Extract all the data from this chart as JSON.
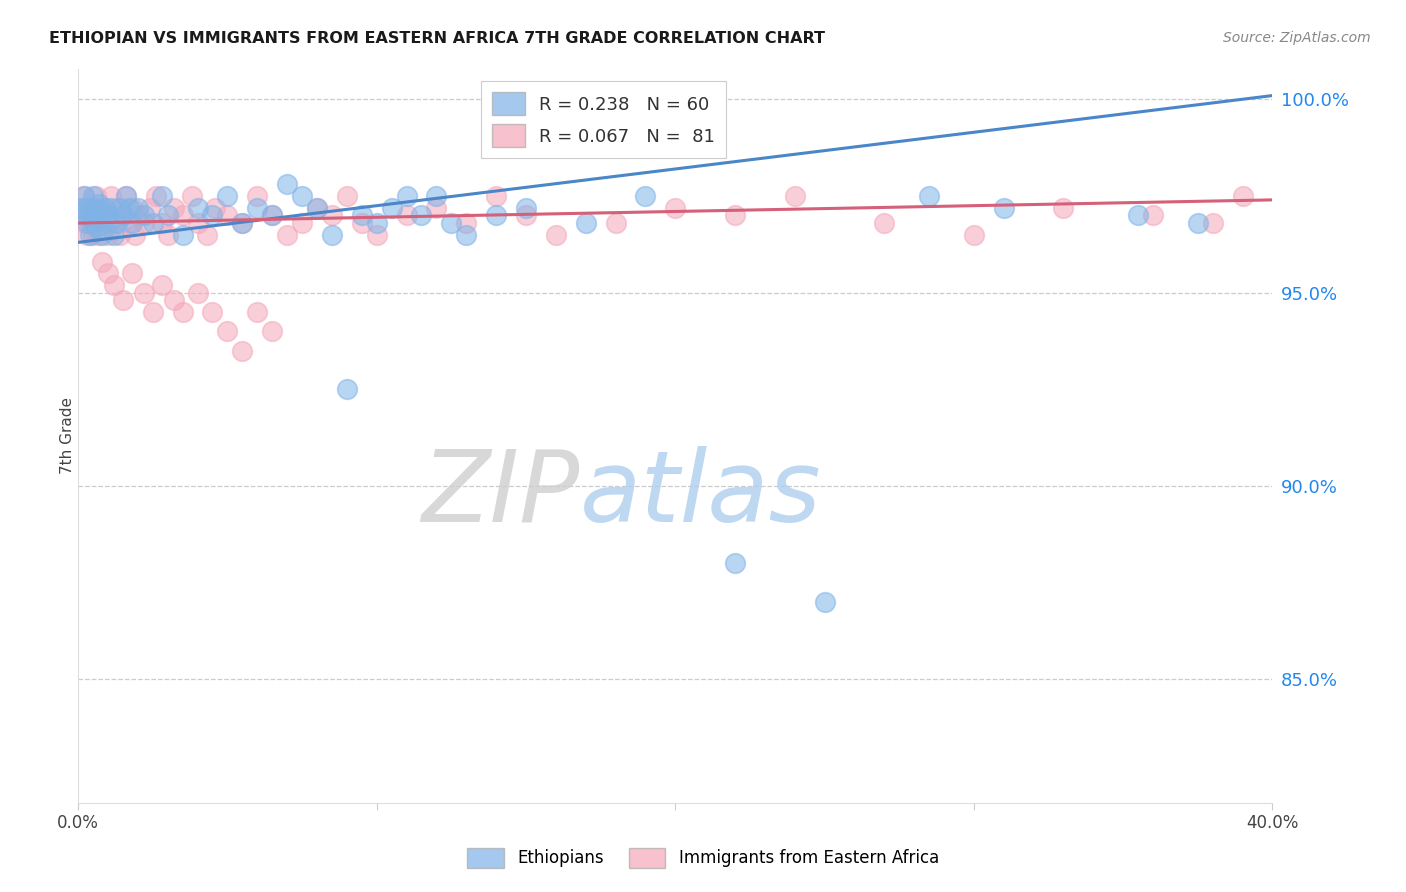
{
  "title": "ETHIOPIAN VS IMMIGRANTS FROM EASTERN AFRICA 7TH GRADE CORRELATION CHART",
  "source": "Source: ZipAtlas.com",
  "ylabel": "7th Grade",
  "y_tick_labels": [
    "100.0%",
    "95.0%",
    "90.0%",
    "85.0%"
  ],
  "y_tick_values": [
    1.0,
    0.95,
    0.9,
    0.85
  ],
  "xlim": [
    0.0,
    0.4
  ],
  "ylim": [
    0.818,
    1.008
  ],
  "blue_color": "#7fb3e8",
  "pink_color": "#f4a7b9",
  "blue_line_color": "#4a86c8",
  "pink_line_color": "#d4607a",
  "blue_line_y0": 0.963,
  "blue_line_y1": 1.001,
  "pink_line_y0": 0.968,
  "pink_line_y1": 0.974,
  "blue_x": [
    0.001,
    0.002,
    0.002,
    0.003,
    0.003,
    0.004,
    0.004,
    0.005,
    0.005,
    0.006,
    0.006,
    0.007,
    0.007,
    0.008,
    0.009,
    0.01,
    0.01,
    0.011,
    0.012,
    0.013,
    0.014,
    0.015,
    0.016,
    0.017,
    0.018,
    0.02,
    0.022,
    0.025,
    0.028,
    0.03,
    0.035,
    0.04,
    0.045,
    0.05,
    0.055,
    0.06,
    0.065,
    0.07,
    0.075,
    0.08,
    0.085,
    0.09,
    0.095,
    0.1,
    0.105,
    0.11,
    0.115,
    0.12,
    0.125,
    0.13,
    0.14,
    0.15,
    0.17,
    0.19,
    0.22,
    0.25,
    0.285,
    0.31,
    0.355,
    0.375
  ],
  "blue_y": [
    0.972,
    0.97,
    0.975,
    0.968,
    0.972,
    0.965,
    0.97,
    0.968,
    0.975,
    0.972,
    0.967,
    0.97,
    0.973,
    0.965,
    0.972,
    0.97,
    0.968,
    0.972,
    0.965,
    0.968,
    0.972,
    0.97,
    0.975,
    0.972,
    0.968,
    0.972,
    0.97,
    0.968,
    0.975,
    0.97,
    0.965,
    0.972,
    0.97,
    0.975,
    0.968,
    0.972,
    0.97,
    0.978,
    0.975,
    0.972,
    0.965,
    0.925,
    0.97,
    0.968,
    0.972,
    0.975,
    0.97,
    0.975,
    0.968,
    0.965,
    0.97,
    0.972,
    0.968,
    0.975,
    0.88,
    0.87,
    0.975,
    0.972,
    0.97,
    0.968
  ],
  "pink_x": [
    0.001,
    0.002,
    0.002,
    0.003,
    0.003,
    0.004,
    0.004,
    0.005,
    0.005,
    0.006,
    0.006,
    0.007,
    0.007,
    0.008,
    0.009,
    0.01,
    0.01,
    0.011,
    0.012,
    0.013,
    0.014,
    0.015,
    0.016,
    0.017,
    0.018,
    0.019,
    0.02,
    0.022,
    0.024,
    0.026,
    0.028,
    0.03,
    0.032,
    0.035,
    0.038,
    0.04,
    0.043,
    0.046,
    0.05,
    0.055,
    0.06,
    0.065,
    0.07,
    0.075,
    0.08,
    0.085,
    0.09,
    0.095,
    0.1,
    0.11,
    0.12,
    0.13,
    0.14,
    0.15,
    0.16,
    0.18,
    0.2,
    0.22,
    0.24,
    0.27,
    0.3,
    0.33,
    0.36,
    0.38,
    0.39,
    0.008,
    0.01,
    0.012,
    0.015,
    0.018,
    0.022,
    0.025,
    0.028,
    0.032,
    0.035,
    0.04,
    0.045,
    0.05,
    0.055,
    0.06,
    0.065
  ],
  "pink_y": [
    0.972,
    0.975,
    0.968,
    0.97,
    0.965,
    0.972,
    0.968,
    0.965,
    0.972,
    0.968,
    0.975,
    0.97,
    0.965,
    0.968,
    0.972,
    0.97,
    0.965,
    0.975,
    0.968,
    0.972,
    0.965,
    0.97,
    0.975,
    0.968,
    0.972,
    0.965,
    0.97,
    0.968,
    0.972,
    0.975,
    0.968,
    0.965,
    0.972,
    0.97,
    0.975,
    0.968,
    0.965,
    0.972,
    0.97,
    0.968,
    0.975,
    0.97,
    0.965,
    0.968,
    0.972,
    0.97,
    0.975,
    0.968,
    0.965,
    0.97,
    0.972,
    0.968,
    0.975,
    0.97,
    0.965,
    0.968,
    0.972,
    0.97,
    0.975,
    0.968,
    0.965,
    0.972,
    0.97,
    0.968,
    0.975,
    0.958,
    0.955,
    0.952,
    0.948,
    0.955,
    0.95,
    0.945,
    0.952,
    0.948,
    0.945,
    0.95,
    0.945,
    0.94,
    0.935,
    0.945,
    0.94
  ],
  "legend_blue_label": "R = 0.238   N = 60",
  "legend_pink_label": "R = 0.067   N =  81",
  "bottom_legend_blue": "Ethiopians",
  "bottom_legend_pink": "Immigrants from Eastern Africa"
}
